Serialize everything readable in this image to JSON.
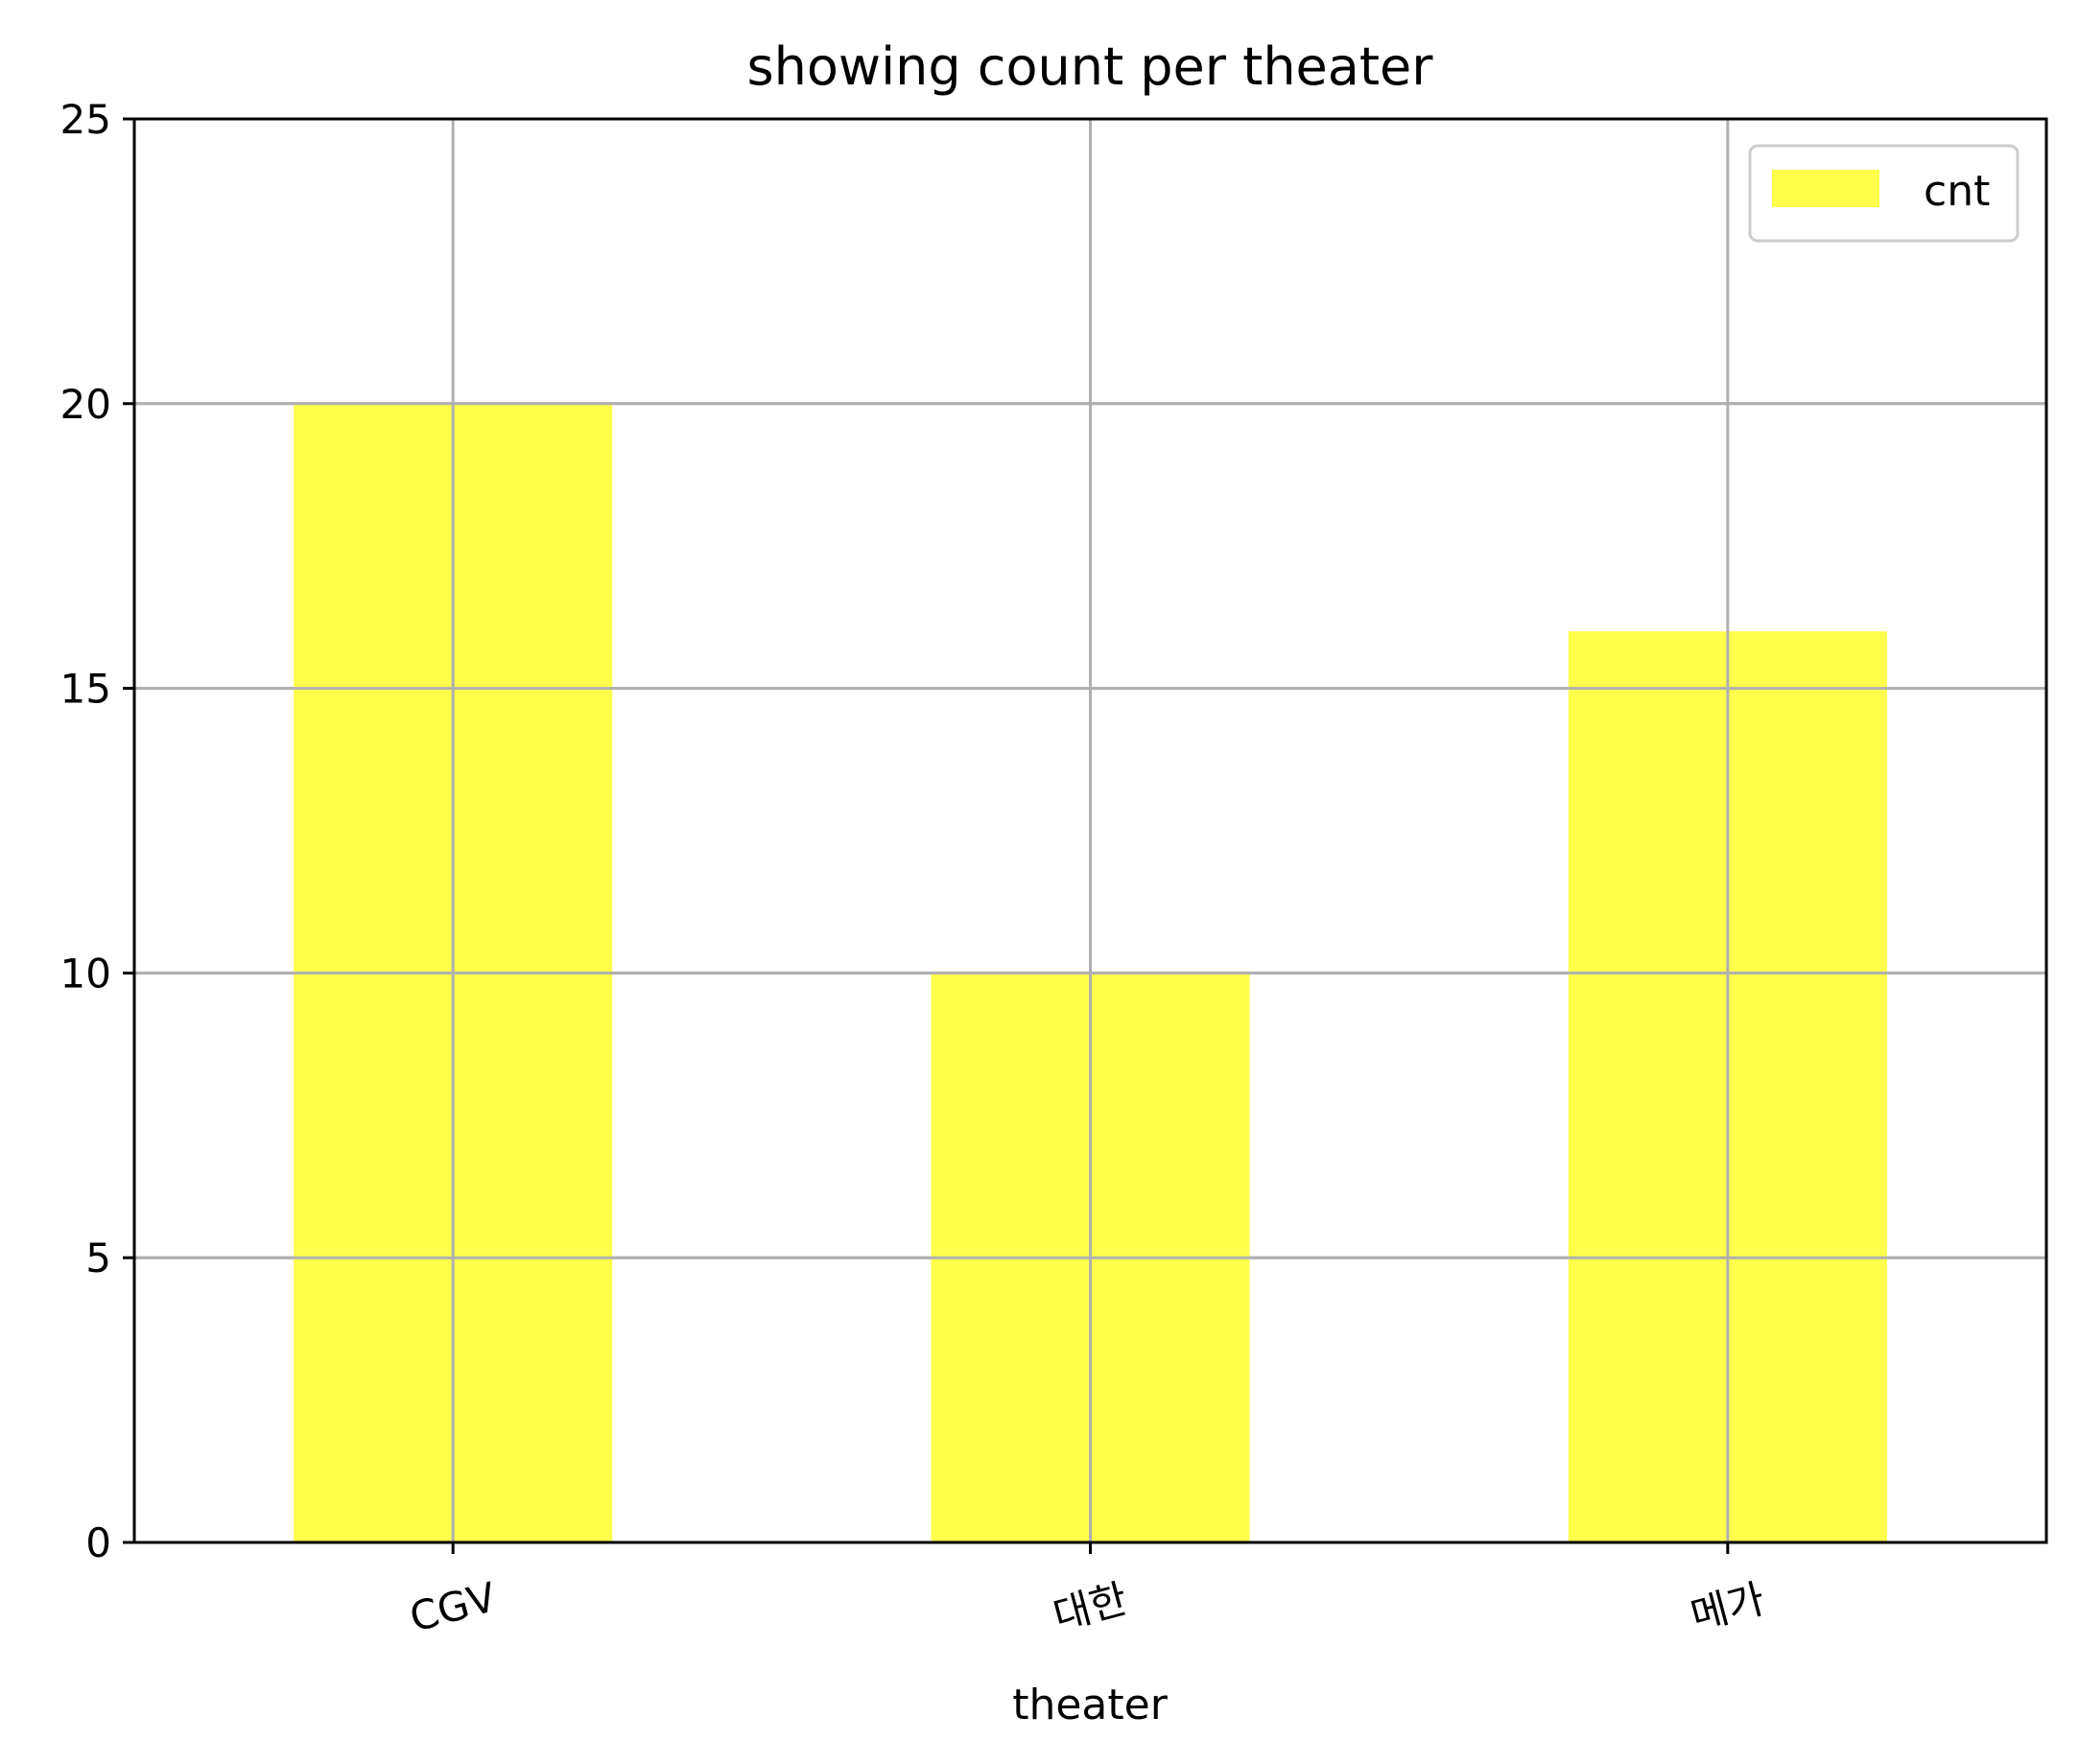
{
  "chart_data": {
    "type": "bar",
    "title": "showing count per theater",
    "xlabel": "theater",
    "ylabel": "",
    "categories": [
      "CGV",
      "대한",
      "메가"
    ],
    "series": [
      {
        "name": "cnt",
        "values": [
          20,
          10,
          16
        ]
      }
    ],
    "ylim": [
      0,
      25
    ],
    "yticks": [
      "0",
      "5",
      "10",
      "15",
      "20",
      "25"
    ],
    "grid": true,
    "legend": "top-right",
    "xtick_rotation_deg": -15,
    "colors": {
      "bar": "#ffff4c",
      "grid": "#b0b0b0",
      "axes": "#000000",
      "legend_border": "#cccccc"
    }
  }
}
